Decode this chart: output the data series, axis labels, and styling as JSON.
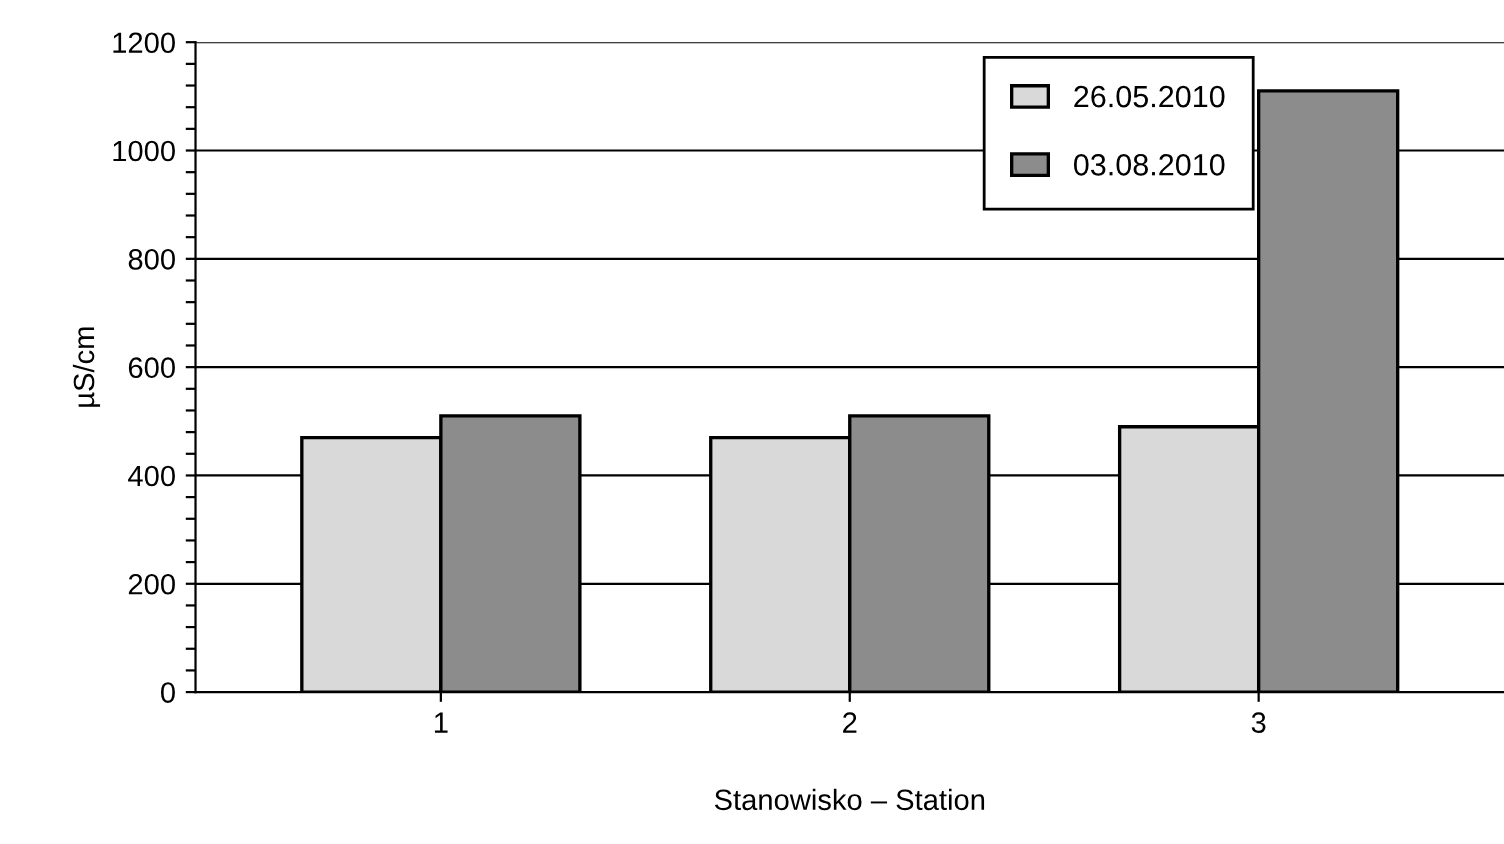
{
  "chart_data": {
    "type": "bar",
    "xlabel": "Stanowisko – Station",
    "ylabel": "µS/cm",
    "categories": [
      "1",
      "2",
      "3"
    ],
    "series": [
      {
        "name": "26.05.2010",
        "color": "#d9d9d9",
        "values": [
          470,
          470,
          490
        ]
      },
      {
        "name": "03.08.2010",
        "color": "#8c8c8c",
        "values": [
          510,
          510,
          1110
        ]
      }
    ],
    "ylim": [
      0,
      1200
    ],
    "yticks": [
      0,
      {
        "value": 40,
        "label": null
      },
      {
        "value": 80,
        "label": null
      },
      {
        "value": 120,
        "label": null
      },
      {
        "value": 160,
        "label": null
      },
      200,
      {
        "value": 240,
        "label": null
      },
      {
        "value": 280,
        "label": null
      },
      {
        "value": 320,
        "label": null
      },
      {
        "value": 360,
        "label": null
      },
      400,
      {
        "value": 440,
        "label": null
      },
      {
        "value": 480,
        "label": null
      },
      {
        "value": 520,
        "label": null
      },
      {
        "value": 560,
        "label": null
      },
      600,
      {
        "value": 640,
        "label": null
      },
      {
        "value": 680,
        "label": null
      },
      {
        "value": 720,
        "label": null
      },
      {
        "value": 760,
        "label": null
      },
      800,
      {
        "value": 840,
        "label": null
      },
      {
        "value": 880,
        "label": null
      },
      {
        "value": 920,
        "label": null
      },
      {
        "value": 960,
        "label": null
      },
      1000,
      {
        "value": 1040,
        "label": null
      },
      {
        "value": 1080,
        "label": null
      },
      {
        "value": 1120,
        "label": null
      },
      {
        "value": 1160,
        "label": null
      },
      1200
    ],
    "grid": "y",
    "legend": "top right"
  }
}
